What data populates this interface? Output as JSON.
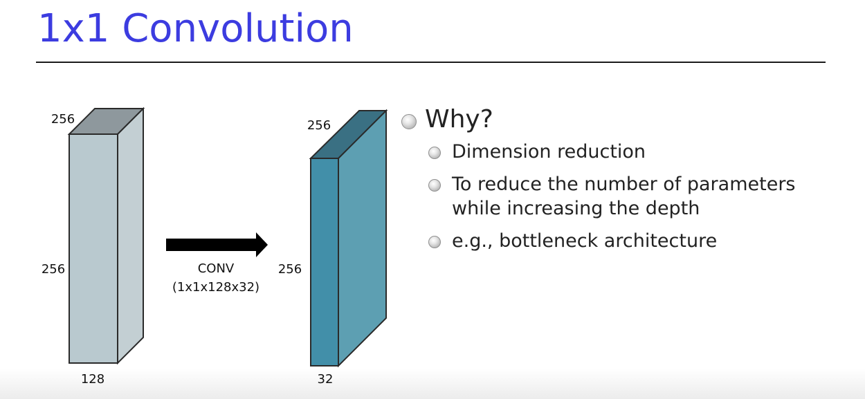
{
  "title": {
    "text": "1x1 Convolution",
    "color": "#3c3ce0"
  },
  "diagram": {
    "input_volume": {
      "top_label": "256",
      "height_label": "256",
      "depth_label": "128",
      "front_color": "#b9c9cf",
      "side_color": "#c3cfd3",
      "top_color": "#8e989d"
    },
    "operation": {
      "line1": "CONV",
      "line2": "(1x1x128x32)"
    },
    "output_volume": {
      "top_label": "256",
      "height_label": "256",
      "depth_label": "32",
      "front_color": "#428fa9",
      "side_color": "#5d9fb2",
      "top_color": "#3a7083"
    }
  },
  "bullets": {
    "heading": "Why?",
    "items": [
      "Dimension reduction",
      "To reduce the number of parameters while increasing the depth",
      "e.g., bottleneck architecture"
    ]
  }
}
